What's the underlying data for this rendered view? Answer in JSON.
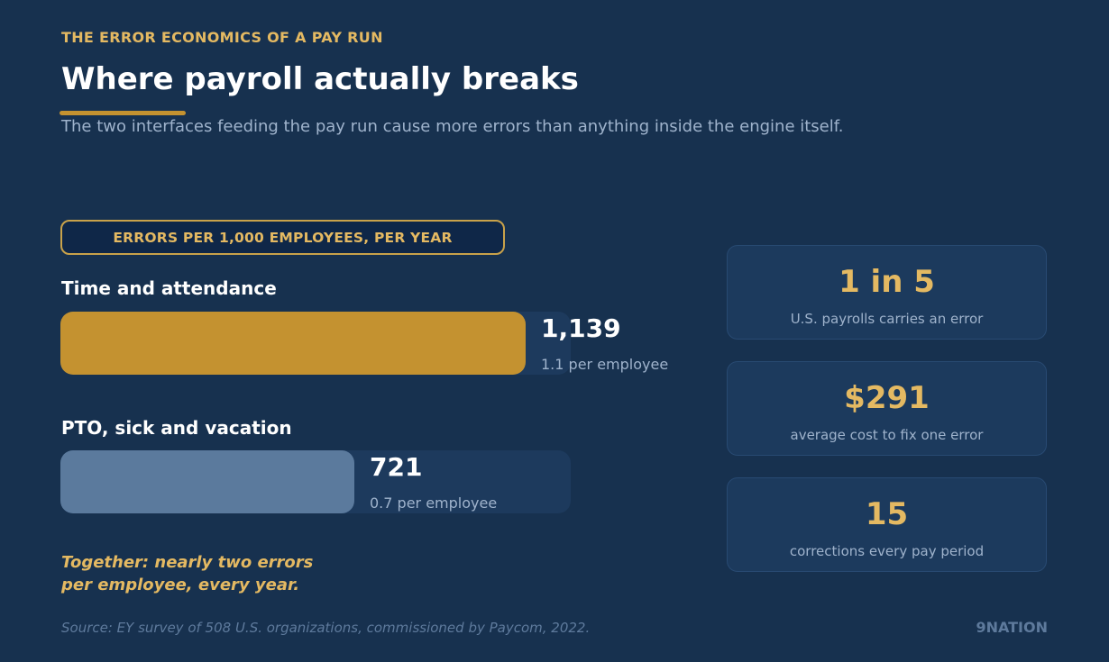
{
  "header": {
    "eyebrow": "THE ERROR ECONOMICS OF A PAY RUN",
    "title": "Where payroll actually breaks",
    "subtitle": "The two interfaces feeding the pay run cause more errors than anything inside the engine itself."
  },
  "colors": {
    "accent": "#e4b962",
    "gold_bar": "#c49230",
    "slate_bar": "#5b7a9d",
    "track": "#1d3a5d",
    "background": "#17314f"
  },
  "chart_data": {
    "type": "bar",
    "orientation": "horizontal",
    "title": "ERRORS PER 1,000 EMPLOYEES, PER YEAR",
    "categories": [
      "Time and attendance",
      "PTO, sick and vacation"
    ],
    "values": [
      1139,
      721
    ],
    "value_labels": [
      "1,139",
      "721"
    ],
    "notes": [
      "1.1 per employee",
      "0.7 per employee"
    ],
    "xlim": [
      0,
      1250
    ]
  },
  "takeaway": {
    "line1": "Together: nearly two errors",
    "line2": "per employee, every year."
  },
  "stats": [
    {
      "value": "1 in 5",
      "label": "U.S. payrolls carries an error"
    },
    {
      "value": "$291",
      "label": "average cost to fix one error"
    },
    {
      "value": "15",
      "label": "corrections every pay period"
    }
  ],
  "footer": {
    "source": "Source: EY survey of 508 U.S. organizations, commissioned by Paycom, 2022.",
    "brand": "9NATION"
  }
}
